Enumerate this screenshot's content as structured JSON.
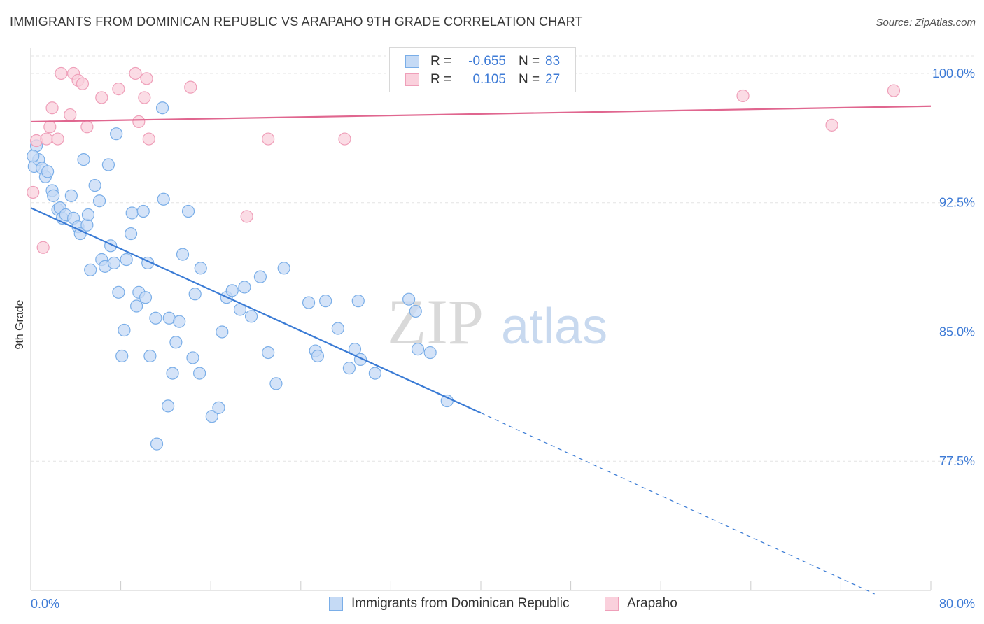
{
  "header": {
    "title": "IMMIGRANTS FROM DOMINICAN REPUBLIC VS ARAPAHO 9TH GRADE CORRELATION CHART",
    "source": "Source: ZipAtlas.com"
  },
  "watermark": {
    "zip": "ZIP",
    "atlas": "atlas"
  },
  "legend": {
    "rows": [
      {
        "r_label": "R =",
        "r_value": "-0.655",
        "n_label": "N =",
        "n_value": "83",
        "color": "#7aaee8",
        "fill": "#c5daf5"
      },
      {
        "r_label": "R =",
        "r_value": "0.105",
        "n_label": "N =",
        "n_value": "27",
        "color": "#ef9fb9",
        "fill": "#fad0dc"
      }
    ]
  },
  "bottom_legend": {
    "series1": "Immigrants from Dominican Republic",
    "series2": "Arapaho"
  },
  "chart_data": {
    "type": "scatter",
    "title": "IMMIGRANTS FROM DOMINICAN REPUBLIC VS ARAPAHO 9TH GRADE CORRELATION CHART",
    "xlabel": "",
    "ylabel": "9th Grade",
    "xlim": [
      0,
      80
    ],
    "ylim": [
      70.0,
      101.5
    ],
    "x_tick_labels": [
      "0.0%",
      "80.0%"
    ],
    "y_ticks": [
      77.5,
      85.0,
      92.5,
      100.0
    ],
    "y_tick_labels": [
      "77.5%",
      "85.0%",
      "92.5%",
      "100.0%"
    ],
    "grid": true,
    "legend_position": "top-center",
    "series": [
      {
        "name": "Immigrants from Dominican Republic",
        "color": "#3a7bd5",
        "fill": "#c5daf5",
        "stroke": "#7aaee8",
        "trend": {
          "x0": 0,
          "y0": 92.2,
          "x1": 40,
          "y1": 80.3,
          "dash_to_x": 75,
          "dash_y": 69.8
        },
        "points": [
          [
            0.3,
            94.6
          ],
          [
            0.5,
            95.8
          ],
          [
            0.7,
            95.0
          ],
          [
            1.0,
            94.5
          ],
          [
            1.3,
            94.0
          ],
          [
            1.5,
            94.3
          ],
          [
            1.9,
            93.2
          ],
          [
            2.0,
            92.9
          ],
          [
            2.4,
            92.1
          ],
          [
            2.6,
            92.2
          ],
          [
            2.8,
            91.6
          ],
          [
            3.1,
            91.8
          ],
          [
            3.6,
            92.9
          ],
          [
            3.8,
            91.6
          ],
          [
            4.2,
            91.1
          ],
          [
            4.4,
            90.7
          ],
          [
            4.7,
            95.0
          ],
          [
            5.0,
            91.2
          ],
          [
            5.1,
            91.8
          ],
          [
            5.3,
            88.6
          ],
          [
            5.7,
            93.5
          ],
          [
            6.1,
            92.6
          ],
          [
            6.3,
            89.2
          ],
          [
            6.6,
            88.8
          ],
          [
            6.9,
            94.7
          ],
          [
            7.1,
            90.0
          ],
          [
            7.4,
            89.0
          ],
          [
            7.6,
            96.5
          ],
          [
            7.8,
            87.3
          ],
          [
            8.1,
            83.6
          ],
          [
            8.3,
            85.1
          ],
          [
            8.5,
            89.2
          ],
          [
            8.9,
            90.7
          ],
          [
            9.0,
            91.9
          ],
          [
            9.4,
            86.5
          ],
          [
            9.6,
            87.3
          ],
          [
            10.0,
            92.0
          ],
          [
            10.2,
            87.0
          ],
          [
            10.4,
            89.0
          ],
          [
            10.6,
            83.6
          ],
          [
            11.1,
            85.8
          ],
          [
            11.2,
            78.5
          ],
          [
            11.8,
            92.7
          ],
          [
            11.7,
            98.0
          ],
          [
            12.2,
            80.7
          ],
          [
            12.3,
            85.8
          ],
          [
            12.6,
            82.6
          ],
          [
            12.9,
            84.4
          ],
          [
            13.2,
            85.6
          ],
          [
            13.5,
            89.5
          ],
          [
            14.0,
            92.0
          ],
          [
            14.4,
            83.5
          ],
          [
            14.6,
            87.2
          ],
          [
            15.0,
            82.6
          ],
          [
            15.1,
            88.7
          ],
          [
            16.1,
            80.1
          ],
          [
            16.7,
            80.6
          ],
          [
            17.0,
            85.0
          ],
          [
            17.4,
            87.0
          ],
          [
            17.9,
            87.4
          ],
          [
            18.6,
            86.3
          ],
          [
            19.0,
            87.6
          ],
          [
            19.6,
            85.9
          ],
          [
            20.4,
            88.2
          ],
          [
            21.1,
            83.8
          ],
          [
            21.8,
            82.0
          ],
          [
            22.5,
            88.7
          ],
          [
            24.7,
            86.7
          ],
          [
            25.3,
            83.9
          ],
          [
            25.5,
            83.6
          ],
          [
            26.2,
            86.8
          ],
          [
            27.3,
            85.2
          ],
          [
            28.3,
            82.9
          ],
          [
            28.8,
            84.0
          ],
          [
            29.1,
            86.8
          ],
          [
            29.3,
            83.4
          ],
          [
            30.6,
            82.6
          ],
          [
            33.6,
            86.9
          ],
          [
            34.2,
            86.2
          ],
          [
            34.4,
            84.0
          ],
          [
            35.5,
            83.8
          ],
          [
            37.0,
            81.0
          ],
          [
            0.2,
            95.2
          ]
        ]
      },
      {
        "name": "Arapaho",
        "color": "#e0668f",
        "fill": "#fad0dc",
        "stroke": "#ef9fb9",
        "trend": {
          "x0": 0,
          "y0": 97.2,
          "x1": 80,
          "y1": 98.1
        },
        "points": [
          [
            0.2,
            93.1
          ],
          [
            0.5,
            96.1
          ],
          [
            1.1,
            89.9
          ],
          [
            1.4,
            96.2
          ],
          [
            1.7,
            96.9
          ],
          [
            1.9,
            98.0
          ],
          [
            2.4,
            96.2
          ],
          [
            2.7,
            100.0
          ],
          [
            3.5,
            97.6
          ],
          [
            3.8,
            100.0
          ],
          [
            4.2,
            99.6
          ],
          [
            4.6,
            99.4
          ],
          [
            5.0,
            96.9
          ],
          [
            6.3,
            98.6
          ],
          [
            7.8,
            99.1
          ],
          [
            9.3,
            100.0
          ],
          [
            9.6,
            97.2
          ],
          [
            10.1,
            98.6
          ],
          [
            10.3,
            99.7
          ],
          [
            10.5,
            96.2
          ],
          [
            14.2,
            99.2
          ],
          [
            19.2,
            91.7
          ],
          [
            21.1,
            96.2
          ],
          [
            27.9,
            96.2
          ],
          [
            63.3,
            98.7
          ],
          [
            71.2,
            97.0
          ],
          [
            76.7,
            99.0
          ]
        ]
      }
    ]
  }
}
